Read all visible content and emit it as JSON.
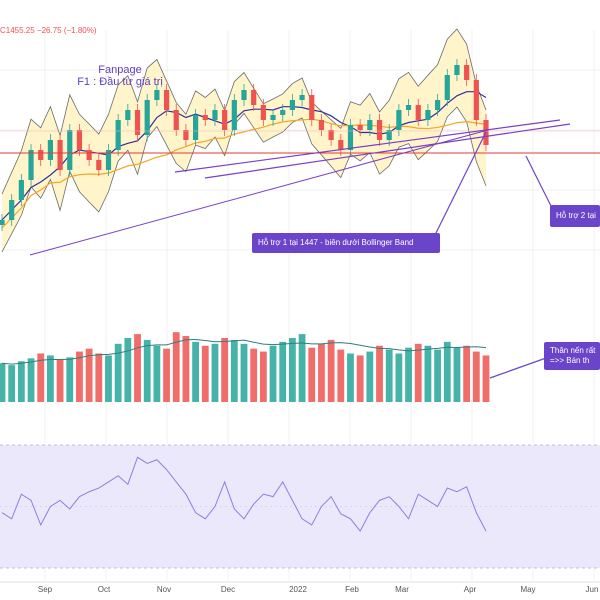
{
  "header": {
    "ohlc_text": "C1455.25  −26.75 (−1.80%)"
  },
  "annotations": {
    "fanpage_line1": "Fanpage",
    "fanpage_line2": "F1 : Đầu tư giá trị",
    "support1": "Hỗ trợ 1 tại 1447 - biên dưới Bollinger Band",
    "support2": "Hỗ trợ 2 tại",
    "volume_note_line1": "Thân nến rất",
    "volume_note_line2": "=>> Bán th"
  },
  "colors": {
    "up": "#26a69a",
    "down": "#ef5350",
    "bb_fill": "#fff3c4",
    "bb_line": "#6b6b6b",
    "ma_short": "#2f2f9f",
    "ma_long": "#f5a623",
    "trendline": "#7b3fc4",
    "support_line": "#e53935",
    "rsi_line": "#8c7fe0",
    "rsi_band": "#ece8fb",
    "callout": "#6a45c9"
  },
  "chart_data": {
    "type": "candlestick",
    "x_ticks": [
      "Sep",
      "Oct",
      "Nov",
      "Dec",
      "2022",
      "Feb",
      "Mar",
      "Apr",
      "May",
      "Jun"
    ],
    "price_ylim": [
      1300,
      1560
    ],
    "support_levels": [
      1447
    ],
    "last_close": 1455.25,
    "change": -26.75,
    "change_pct": -1.8,
    "price": [
      1380,
      1400,
      1420,
      1450,
      1440,
      1460,
      1430,
      1470,
      1450,
      1440,
      1430,
      1450,
      1480,
      1490,
      1465,
      1500,
      1510,
      1490,
      1470,
      1460,
      1485,
      1480,
      1490,
      1470,
      1500,
      1510,
      1495,
      1480,
      1485,
      1490,
      1500,
      1505,
      1480,
      1470,
      1460,
      1450,
      1475,
      1470,
      1480,
      1460,
      1470,
      1490,
      1495,
      1480,
      1490,
      1500,
      1525,
      1535,
      1520,
      1480,
      1455
    ],
    "volume_ylim": [
      0,
      100
    ],
    "volume": [
      40,
      38,
      42,
      45,
      50,
      48,
      44,
      46,
      52,
      55,
      50,
      48,
      60,
      66,
      70,
      64,
      58,
      55,
      72,
      68,
      62,
      58,
      60,
      66,
      64,
      60,
      55,
      52,
      58,
      62,
      66,
      70,
      56,
      60,
      64,
      54,
      50,
      48,
      52,
      58,
      54,
      50,
      56,
      60,
      58,
      54,
      62,
      56,
      58,
      52,
      48
    ],
    "rsi_ylim": [
      0,
      100
    ],
    "rsi": [
      45,
      40,
      60,
      55,
      35,
      50,
      55,
      48,
      58,
      62,
      65,
      70,
      75,
      68,
      90,
      85,
      88,
      80,
      70,
      60,
      45,
      40,
      50,
      70,
      48,
      40,
      52,
      60,
      58,
      70,
      55,
      40,
      35,
      50,
      58,
      44,
      40,
      30,
      45,
      55,
      58,
      50,
      40,
      60,
      55,
      50,
      65,
      62,
      66,
      45,
      30
    ]
  }
}
